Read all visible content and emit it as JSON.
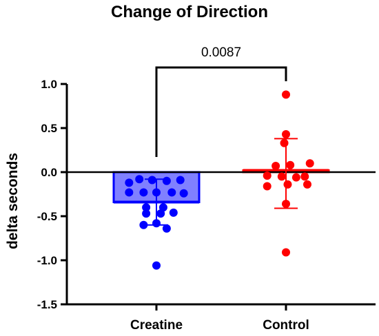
{
  "chart_data": {
    "type": "bar",
    "title": "Change of Direction",
    "xlabel": "",
    "ylabel": "delta seconds",
    "ylim": [
      -1.5,
      1.0
    ],
    "yticks": [
      1.0,
      0.5,
      0.0,
      -0.5,
      -1.0,
      -1.5
    ],
    "ytick_labels": [
      "1.0",
      "0.5",
      "0.0",
      "-0.5",
      "-1.0",
      "-1.5"
    ],
    "categories": [
      "Creatine",
      "Control"
    ],
    "grid": false,
    "legend": "none",
    "groups": [
      {
        "category": "Creatine",
        "color": "#0000ff",
        "bar_fill": "#8080ff",
        "mean": -0.34,
        "sd_upper": -0.08,
        "sd_lower": -0.6,
        "points": [
          {
            "pos": 0.18,
            "y": -0.12
          },
          {
            "pos": 0.3,
            "y": -0.08
          },
          {
            "pos": 0.45,
            "y": -0.09
          },
          {
            "pos": 0.62,
            "y": -0.1
          },
          {
            "pos": 0.78,
            "y": -0.09
          },
          {
            "pos": 0.18,
            "y": -0.23
          },
          {
            "pos": 0.35,
            "y": -0.23
          },
          {
            "pos": 0.5,
            "y": -0.23
          },
          {
            "pos": 0.68,
            "y": -0.23
          },
          {
            "pos": 0.82,
            "y": -0.24
          },
          {
            "pos": 0.38,
            "y": -0.4
          },
          {
            "pos": 0.58,
            "y": -0.4
          },
          {
            "pos": 0.38,
            "y": -0.47
          },
          {
            "pos": 0.55,
            "y": -0.47
          },
          {
            "pos": 0.7,
            "y": -0.46
          },
          {
            "pos": 0.35,
            "y": -0.6
          },
          {
            "pos": 0.5,
            "y": -0.58
          },
          {
            "pos": 0.62,
            "y": -0.64
          },
          {
            "pos": 0.5,
            "y": -1.06
          }
        ]
      },
      {
        "category": "Control",
        "color": "#ff0000",
        "bar_fill": "#ff8080",
        "mean": 0.02,
        "sd_upper": 0.38,
        "sd_lower": -0.41,
        "points": [
          {
            "pos": 0.5,
            "y": 0.88
          },
          {
            "pos": 0.5,
            "y": 0.43
          },
          {
            "pos": 0.48,
            "y": 0.33
          },
          {
            "pos": 0.38,
            "y": 0.07
          },
          {
            "pos": 0.55,
            "y": 0.08
          },
          {
            "pos": 0.78,
            "y": 0.1
          },
          {
            "pos": 0.28,
            "y": -0.04
          },
          {
            "pos": 0.45,
            "y": -0.05
          },
          {
            "pos": 0.62,
            "y": -0.06
          },
          {
            "pos": 0.72,
            "y": -0.05
          },
          {
            "pos": 0.28,
            "y": -0.16
          },
          {
            "pos": 0.52,
            "y": -0.14
          },
          {
            "pos": 0.75,
            "y": -0.14
          },
          {
            "pos": 0.5,
            "y": -0.36
          },
          {
            "pos": 0.5,
            "y": -0.91
          }
        ]
      }
    ],
    "comparison": {
      "from": "Creatine",
      "to": "Control",
      "label": "0.0087"
    }
  }
}
